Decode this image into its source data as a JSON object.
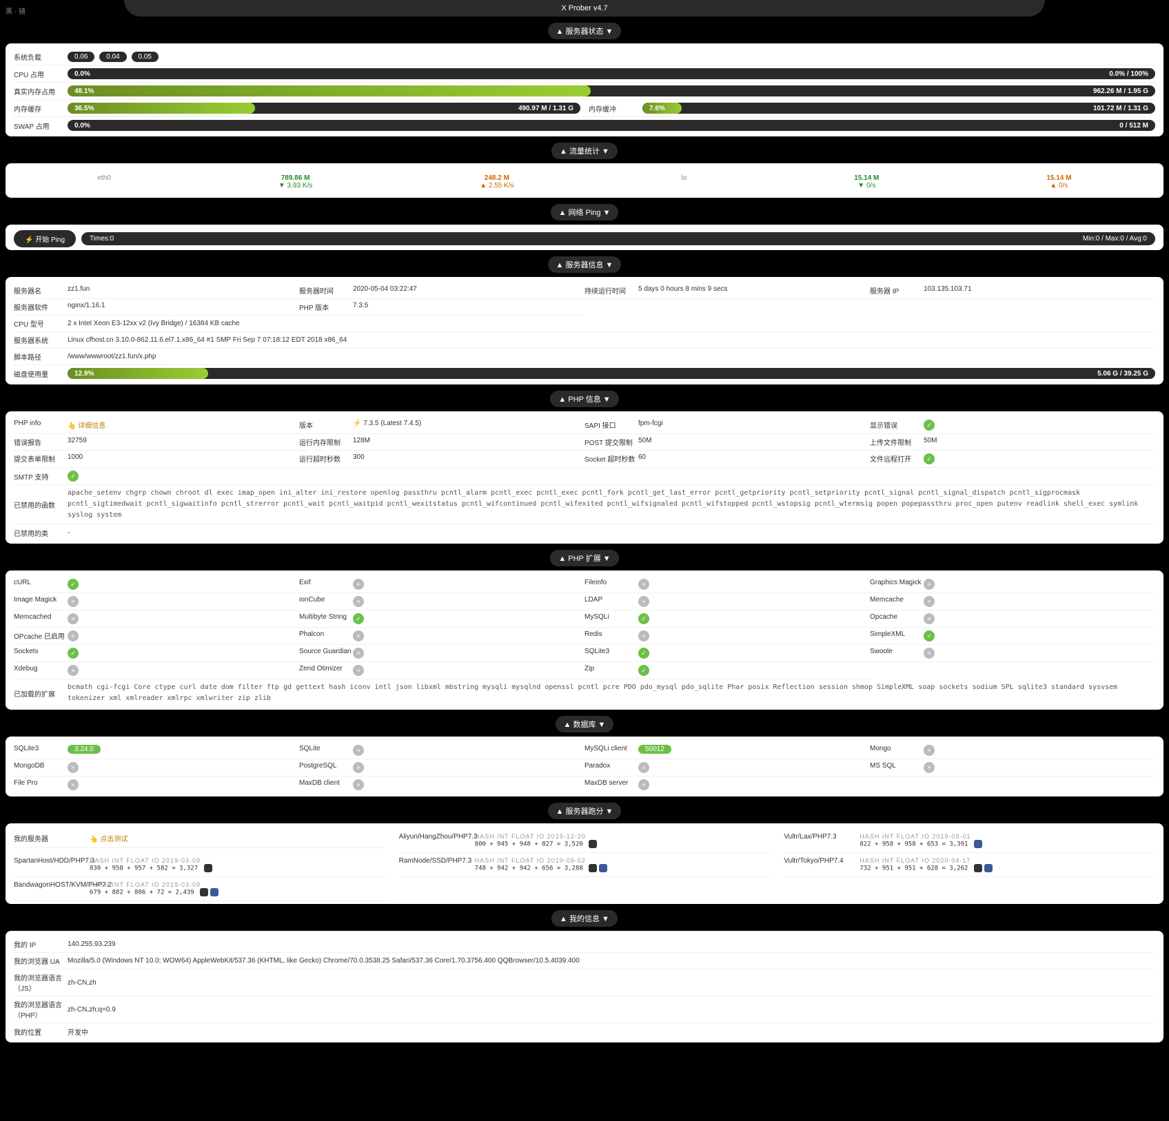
{
  "title": "X Prober v4.7",
  "banner": "黑 · 镜",
  "sections": {
    "status": {
      "title": "▲ 服务器状态 ▼",
      "rows": {
        "load": {
          "label": "系统负载",
          "v1": "0.06",
          "v2": "0.04",
          "v3": "0.05"
        },
        "cpu": {
          "label": "CPU 占用",
          "pct": "0.0%",
          "right": "0.0% / 100%",
          "width": 0
        },
        "mem": {
          "label": "真实内存占用",
          "pct": "48.1%",
          "right": "962.26 M / 1.95 G",
          "width": 48.1
        },
        "cache": {
          "label": "内存缓存",
          "pct": "36.5%",
          "right": "490.97 M / 1.31 G",
          "width": 36.5,
          "label2": "内存缓冲",
          "pct2": "7.6%",
          "right2": "101.72 M / 1.31 G",
          "width2": 7.6
        },
        "swap": {
          "label": "SWAP 占用",
          "pct": "0.0%",
          "right": "0 / 512 M",
          "width": 0
        }
      }
    },
    "traffic": {
      "title": "▲ 流量统计 ▼",
      "cols": [
        {
          "h": "eth0",
          "a": "789.86 M",
          "b": "▼ 3.93 K/s",
          "c": "248.2 M",
          "d": "▲ 2.55 K/s",
          "type": "net"
        },
        {
          "h": "lo",
          "a": "15.14 M",
          "b": "▼ 0/s",
          "c": "15.14 M",
          "d": "▲ 0/s",
          "type": "net"
        }
      ]
    },
    "ping": {
      "title": "▲ 网络 Ping ▼",
      "btn": "⚡ 开始 Ping",
      "times": "Times:0",
      "right": "Min:0 / Max:0 / Avg:0"
    },
    "server": {
      "title": "▲ 服务器信息 ▼",
      "r1": [
        {
          "l": "服务器名",
          "v": "zz1.fun"
        },
        {
          "l": "服务器时间",
          "v": "2020-05-04 03:22:47"
        },
        {
          "l": "持续运行时间",
          "v": "5 days 0 hours 8 mins 9 secs"
        },
        {
          "l": "服务器 IP",
          "v": "103.135.103.71"
        }
      ],
      "r2": [
        {
          "l": "服务器软件",
          "v": "nginx/1.16.1"
        },
        {
          "l": "PHP 版本",
          "v": "7.3.5"
        }
      ],
      "cpu": {
        "l": "CPU 型号",
        "v": "2 x Intel Xeon E3-12xx v2 (Ivy Bridge) / 16384 KB cache"
      },
      "os": {
        "l": "服务器系统",
        "v": "Linux cfhost.cn 3.10.0-862.11.6.el7.1.x86_64 #1 SMP Fri Sep 7 07:18:12 EDT 2018 x86_64"
      },
      "script": {
        "l": "脚本路径",
        "v": "/www/wwwroot/zz1.fun/x.php"
      },
      "disk": {
        "l": "磁盘使用量",
        "pct": "12.9%",
        "right": "5.06 G / 39.25 G",
        "width": 12.9
      }
    },
    "php": {
      "title": "▲ PHP 信息 ▼",
      "r1": [
        {
          "l": "PHP info",
          "v": "👆 详细信息",
          "link": true
        },
        {
          "l": "版本",
          "v": "⚡ 7.3.5 (Latest 7.4.5)"
        },
        {
          "l": "SAPI 接口",
          "v": "fpm-fcgi"
        },
        {
          "l": "显示错误",
          "v": "",
          "ok": true
        }
      ],
      "r2": [
        {
          "l": "错误报告",
          "v": "32759"
        },
        {
          "l": "运行内存限制",
          "v": "128M"
        },
        {
          "l": "POST 提交限制",
          "v": "50M"
        },
        {
          "l": "上传文件限制",
          "v": "50M"
        }
      ],
      "r3": [
        {
          "l": "提交表单限制",
          "v": "1000"
        },
        {
          "l": "运行超时秒数",
          "v": "300"
        },
        {
          "l": "Socket 超时秒数",
          "v": "60"
        },
        {
          "l": "文件远程打开",
          "v": "",
          "ok": true
        }
      ],
      "smtp": {
        "l": "SMTP 支持",
        "ok": true
      },
      "disabled": {
        "l": "已禁用的函数",
        "v": "apache_setenv chgrp chown chroot dl exec imap_open ini_alter ini_restore openlog passthru pcntl_alarm pcntl_exec pcntl_exec pcntl_fork pcntl_get_last_error pcntl_getpriority pcntl_setpriority pcntl_signal pcntl_signal_dispatch pcntl_sigprocmask pcntl_sigtimedwait pcntl_sigwaitinfo pcntl_strerror pcntl_wait pcntl_waitpid pcntl_wexitstatus pcntl_wifcontinued pcntl_wifexited pcntl_wifsignaled pcntl_wifstopped pcntl_wstopsig pcntl_wtermsig popen popepassthru proc_open putenv readlink shell_exec symlink syslog system"
      },
      "disabled_cls": {
        "l": "已禁用的类",
        "v": "-"
      }
    },
    "ext": {
      "title": "▲ PHP 扩展 ▼",
      "items": [
        {
          "l": "cURL",
          "ok": true
        },
        {
          "l": "Exif",
          "ok": false
        },
        {
          "l": "Fileinfo",
          "ok": false
        },
        {
          "l": "Graphics Magick",
          "ok": false
        },
        {
          "l": "Image Magick",
          "ok": false
        },
        {
          "l": "ionCube",
          "ok": false
        },
        {
          "l": "LDAP",
          "ok": false
        },
        {
          "l": "Memcache",
          "ok": false
        },
        {
          "l": "Memcached",
          "ok": false
        },
        {
          "l": "Multibyte String",
          "ok": true
        },
        {
          "l": "MySQLi",
          "ok": true
        },
        {
          "l": "Opcache",
          "ok": false
        },
        {
          "l": "OPcache 已启用",
          "ok": false
        },
        {
          "l": "Phalcon",
          "ok": false
        },
        {
          "l": "Redis",
          "ok": false
        },
        {
          "l": "SimpleXML",
          "ok": true
        },
        {
          "l": "Sockets",
          "ok": true
        },
        {
          "l": "Source Guardian",
          "ok": false
        },
        {
          "l": "SQLite3",
          "ok": true
        },
        {
          "l": "Swoole",
          "ok": false
        },
        {
          "l": "Xdebug",
          "ok": false
        },
        {
          "l": "Zend Otimizer",
          "ok": false
        },
        {
          "l": "Zip",
          "ok": true
        }
      ],
      "loaded": {
        "l": "已加载的扩展",
        "v": "bcmath cgi-fcgi Core ctype curl date dom filter ftp gd gettext hash iconv intl json libxml mbstring mysqli mysqlnd openssl pcntl pcre PDO pdo_mysql pdo_sqlite Phar posix Reflection session shmop SimpleXML soap sockets sodium SPL sqlite3 standard sysvsem tokenizer xml xmlreader xmlrpc xmlwriter zip zlib"
      }
    },
    "db": {
      "title": "▲ 数据库 ▼",
      "items": [
        {
          "l": "SQLite3",
          "pill": "3.24.0"
        },
        {
          "l": "SQLite",
          "ok": false
        },
        {
          "l": "MySQLi client",
          "pill": "50012"
        },
        {
          "l": "Mongo",
          "ok": false
        },
        {
          "l": "MongoDB",
          "ok": false
        },
        {
          "l": "PostgreSQL",
          "ok": false
        },
        {
          "l": "Paradox",
          "ok": false
        },
        {
          "l": "MS SQL",
          "ok": false
        },
        {
          "l": "File Pro",
          "ok": false
        },
        {
          "l": "MaxDB client",
          "ok": false
        },
        {
          "l": "MaxDB server",
          "ok": false
        }
      ]
    },
    "bench": {
      "title": "▲ 服务器跑分 ▼",
      "myserver": {
        "l": "我的服务器",
        "v": "👆 点击测试"
      },
      "items": [
        {
          "l": "Aliyun/HangZhou/PHP7.3",
          "hdr": "HASH  INT  FLOAT  IO  2019-12-20",
          "v": "800 + 945 +  948 + 827 =  3,520",
          "icon": "dark"
        },
        {
          "l": "Vultr/Lax/PHP7.3",
          "hdr": "HASH  INT  FLOAT  IO  2019-03-01",
          "v": "822 + 958 +  958 + 653 =  3,391",
          "icon": "blue"
        },
        {
          "l": "SpartanHost/HDD/PHP7.3",
          "hdr": "HASH  INT  FLOAT  IO  2019-03-09",
          "v": "830 + 958 +  957 + 582 =  3,327",
          "icon": "dark"
        },
        {
          "l": "RamNode/SSD/PHP7.3",
          "hdr": "HASH  INT  FLOAT  IO  2019-09-02",
          "v": "748 + 942 +  942 + 656 =  3,288",
          "icon": "dark",
          "icon2": "blue"
        },
        {
          "l": "Vultr/Tokyo/PHP7.4",
          "hdr": "HASH  INT  FLOAT  IO  2020-04-17",
          "v": "732 + 951 +  951 + 628 =  3,262",
          "icon": "dark",
          "icon2": "blue"
        },
        {
          "l": "BandwagonHOST/KVM/PHP7.2",
          "hdr": "HASH  INT  FLOAT  IO  2019-03-09",
          "v": "679 + 882 +  806 + 72 =  2,439",
          "icon": "dark",
          "icon2": "blue"
        }
      ]
    },
    "my": {
      "title": "▲ 我的信息 ▼",
      "rows": [
        {
          "l": "我的 IP",
          "v": "140.255.93.239"
        },
        {
          "l": "我的浏览器 UA",
          "v": "Mozilla/5.0 (Windows NT 10.0; WOW64) AppleWebKit/537.36 (KHTML, like Gecko) Chrome/70.0.3538.25 Safari/537.36 Core/1.70.3756.400 QQBrowser/10.5.4039.400"
        },
        {
          "l": "我的浏览器语言（JS）",
          "v": "zh-CN,zh"
        },
        {
          "l": "我的浏览器语言（PHP）",
          "v": "zh-CN,zh;q=0.9"
        },
        {
          "l": "我的位置",
          "v": "开发中"
        }
      ]
    }
  }
}
